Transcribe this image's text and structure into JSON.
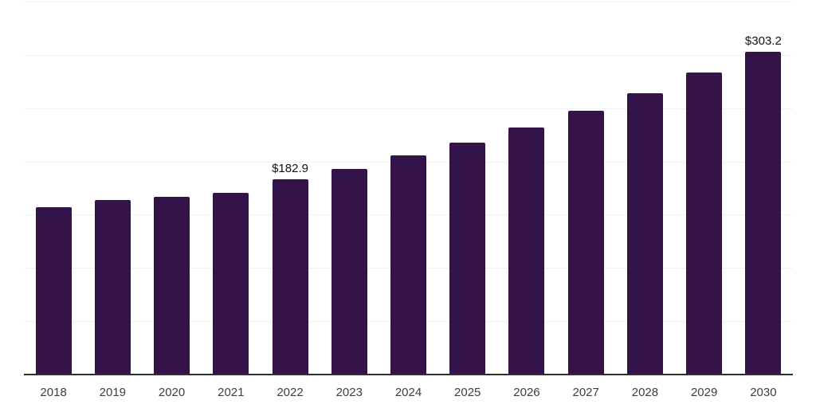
{
  "chart_data": {
    "type": "bar",
    "title": "",
    "xlabel": "",
    "ylabel": "",
    "categories": [
      "2018",
      "2019",
      "2020",
      "2021",
      "2022",
      "2023",
      "2024",
      "2025",
      "2026",
      "2027",
      "2028",
      "2029",
      "2030"
    ],
    "values": [
      157.4,
      163.8,
      167.1,
      170.5,
      182.9,
      193.0,
      205.7,
      217.3,
      231.8,
      247.5,
      264.0,
      283.4,
      303.2
    ],
    "data_labels": [
      {
        "index": 4,
        "text": "$182.9"
      },
      {
        "index": 12,
        "text": "$303.2"
      }
    ],
    "ylim": [
      0,
      350
    ],
    "gridline_step": 50,
    "grid": "horizontal",
    "legend": "none",
    "y_axis_ticks_visible": false,
    "colors": {
      "bar": "#331349",
      "gridline": "#f2f2f4",
      "axis_line": "#2f2f2f",
      "tick_label": "#3d3d3d",
      "data_label": "#121212",
      "background": "#ffffff"
    }
  }
}
